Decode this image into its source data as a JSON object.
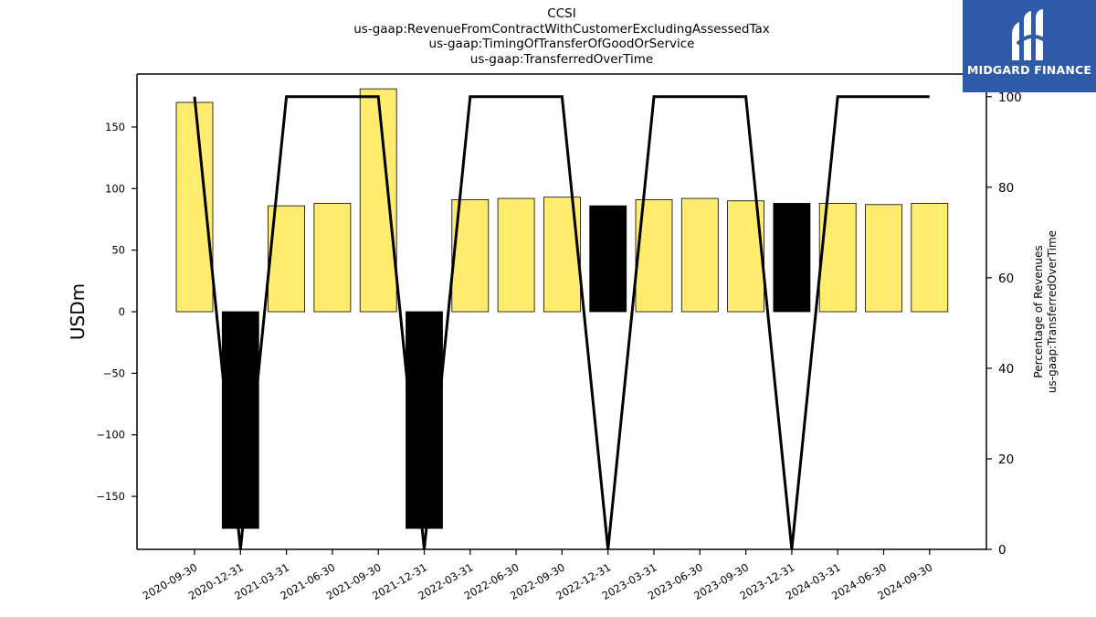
{
  "chart_data": {
    "type": "bar",
    "title_lines": [
      "CCSI",
      "us-gaap:RevenueFromContractWithCustomerExcludingAssessedTax",
      "us-gaap:TimingOfTransferOfGoodOrService",
      "us-gaap:TransferredOverTime"
    ],
    "ylabel": "USDm",
    "y2label_lines": [
      "Percentage of Revenues",
      "us-gaap:TransferredOverTime"
    ],
    "ylim": [
      -193,
      193
    ],
    "y2lim": [
      0,
      105
    ],
    "yticks": [
      -150,
      -100,
      -50,
      0,
      50,
      100,
      150
    ],
    "y2ticks": [
      0,
      20,
      40,
      60,
      80,
      100
    ],
    "categories": [
      "2020-09-30",
      "2020-12-31",
      "2021-03-31",
      "2021-06-30",
      "2021-09-30",
      "2021-12-31",
      "2022-03-31",
      "2022-06-30",
      "2022-09-30",
      "2022-12-31",
      "2023-03-31",
      "2023-06-30",
      "2023-09-30",
      "2023-12-31",
      "2024-03-31",
      "2024-06-30",
      "2024-09-30"
    ],
    "bar_values": [
      170,
      -176,
      86,
      88,
      181,
      -176,
      91,
      92,
      93,
      86,
      91,
      92,
      90,
      88,
      88,
      87,
      88
    ],
    "bar_colors": [
      "#ffec6e",
      "#000000",
      "#ffec6e",
      "#ffec6e",
      "#ffec6e",
      "#000000",
      "#ffec6e",
      "#ffec6e",
      "#ffec6e",
      "#000000",
      "#ffec6e",
      "#ffec6e",
      "#ffec6e",
      "#000000",
      "#ffec6e",
      "#ffec6e",
      "#ffec6e"
    ],
    "line_values": [
      100,
      0,
      100,
      100,
      100,
      0,
      100,
      100,
      100,
      0,
      100,
      100,
      100,
      0,
      100,
      100,
      100
    ],
    "line_color": "#000000",
    "grid": false
  },
  "logo": {
    "text": "MIDGARD FINANCE",
    "color": "#2f5aa8"
  }
}
